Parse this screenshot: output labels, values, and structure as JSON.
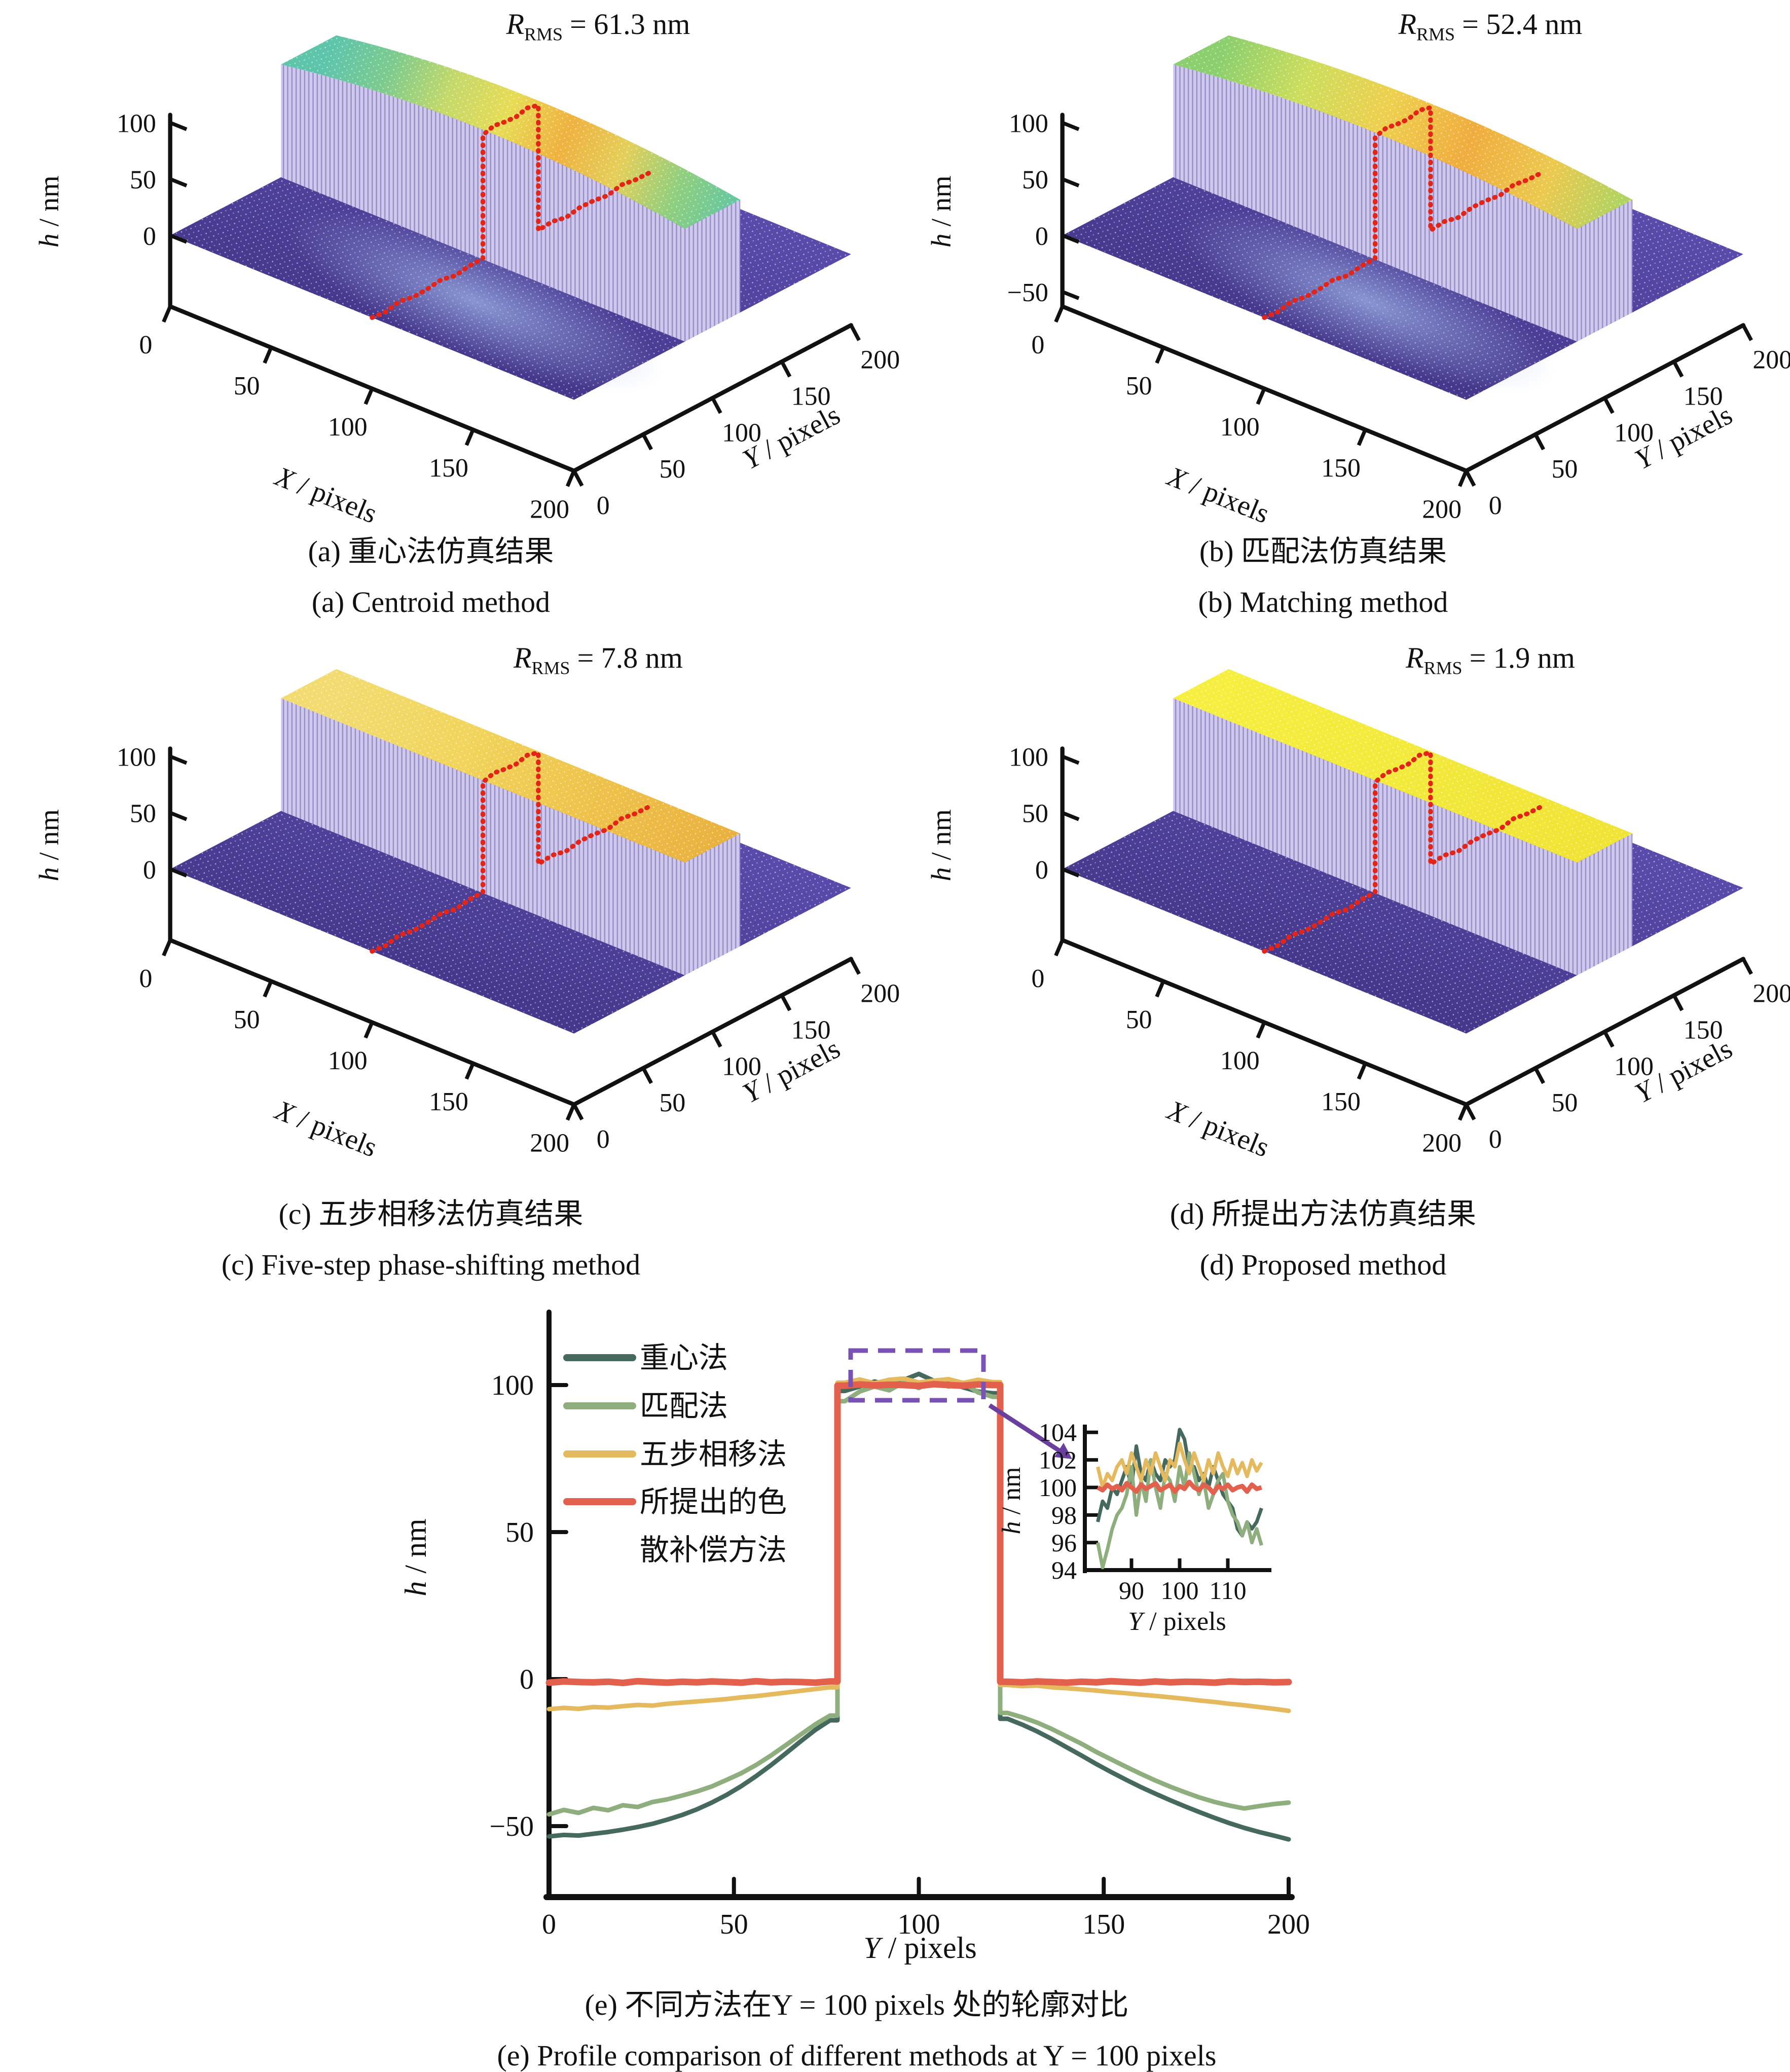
{
  "colors": {
    "background": "#ffffff",
    "axis": "#111111",
    "base_top": "#5b4dae",
    "base_front": "#45388c",
    "wall": "#cfc9ec",
    "wall_stripe": "#978cc9",
    "profile_red_3d": "#e42417",
    "inset_box_purple": "#7a52b5",
    "centroid": "#46695e",
    "matching": "#8fae7d",
    "fivestep": "#e5b95e",
    "proposed": "#e2604c"
  },
  "chart_data": [
    {
      "type": "surface",
      "panel": "a",
      "rms_r": "R",
      "rms_sub": "RMS",
      "rms_value": "= 61.3 nm",
      "rms_nm": 61.3,
      "caption_zh": "(a) 重心法仿真结果",
      "caption_en": "(a) Centroid method",
      "xlabel": "X / pixels",
      "ylabel": "Y / pixels",
      "zlabel": "h / nm",
      "x_ticks": [
        0,
        50,
        100,
        150,
        200
      ],
      "y_ticks": [
        0,
        50,
        100,
        150,
        200
      ],
      "z_ticks": [
        100,
        50,
        0
      ],
      "x_range": [
        0,
        200
      ],
      "y_range": [
        0,
        200
      ],
      "step_y_range": [
        80,
        120
      ],
      "step_height_nm": 100,
      "profile_marked_at_x": 100,
      "band_top_colors": [
        "#5ec5ab",
        "#7ecb8e",
        "#c4d96a",
        "#e7dc55",
        "#efb23f",
        "#e4cf5a",
        "#8fcf7f",
        "#63c6a4"
      ],
      "dome": 36,
      "dip": true
    },
    {
      "type": "surface",
      "panel": "b",
      "rms_r": "R",
      "rms_sub": "RMS",
      "rms_value": "= 52.4 nm",
      "rms_nm": 52.4,
      "caption_zh": "(b) 匹配法仿真结果",
      "caption_en": "(b) Matching method",
      "xlabel": "X / pixels",
      "ylabel": "Y / pixels",
      "zlabel": "h / nm",
      "x_ticks": [
        0,
        50,
        100,
        150,
        200
      ],
      "y_ticks": [
        0,
        50,
        100,
        150,
        200
      ],
      "z_ticks": [
        100,
        50,
        0,
        -50
      ],
      "x_range": [
        0,
        200
      ],
      "y_range": [
        0,
        200
      ],
      "step_y_range": [
        80,
        120
      ],
      "step_height_nm": 100,
      "profile_marked_at_x": 100,
      "band_top_colors": [
        "#8ccf6e",
        "#cdde5c",
        "#eed04e",
        "#f0ad3e",
        "#ecc94e",
        "#a9d564"
      ],
      "dome": 30,
      "dip": true
    },
    {
      "type": "surface",
      "panel": "c",
      "rms_r": "R",
      "rms_sub": "RMS",
      "rms_value": "= 7.8 nm",
      "rms_nm": 7.8,
      "caption_zh": "(c) 五步相移法仿真结果",
      "caption_en": "(c) Five-step phase-shifting method",
      "xlabel": "X / pixels",
      "ylabel": "Y / pixels",
      "zlabel": "h / nm",
      "x_ticks": [
        0,
        50,
        100,
        150,
        200
      ],
      "y_ticks": [
        0,
        50,
        100,
        150,
        200
      ],
      "z_ticks": [
        100,
        50,
        0
      ],
      "x_range": [
        0,
        200
      ],
      "y_range": [
        0,
        200
      ],
      "step_y_range": [
        80,
        120
      ],
      "step_height_nm": 100,
      "profile_marked_at_x": 100,
      "band_top_colors": [
        "#f2dc72",
        "#f1d55c",
        "#eec24a",
        "#e9b03e"
      ],
      "dome": 0,
      "dip": false
    },
    {
      "type": "surface",
      "panel": "d",
      "rms_r": "R",
      "rms_sub": "RMS",
      "rms_value": "= 1.9 nm",
      "rms_nm": 1.9,
      "caption_zh": "(d) 所提出方法仿真结果",
      "caption_en": "(d) Proposed method",
      "xlabel": "X / pixels",
      "ylabel": "Y / pixels",
      "zlabel": "h / nm",
      "x_ticks": [
        0,
        50,
        100,
        150,
        200
      ],
      "y_ticks": [
        0,
        50,
        100,
        150,
        200
      ],
      "z_ticks": [
        100,
        50,
        0
      ],
      "x_range": [
        0,
        200
      ],
      "y_range": [
        0,
        200
      ],
      "step_y_range": [
        80,
        120
      ],
      "step_height_nm": 100,
      "profile_marked_at_x": 100,
      "band_top_colors": [
        "#f6ef3f",
        "#f0e335"
      ],
      "dome": 0,
      "dip": false
    },
    {
      "type": "line",
      "panel": "e",
      "caption_zh": "(e) 不同方法在Y = 100 pixels 处的轮廓对比",
      "caption_en": "(e) Profile comparison of different methods at Y = 100 pixels",
      "xlabel": "Y / pixels",
      "ylabel": "h / nm",
      "x_ticks": [
        0,
        50,
        100,
        150,
        200
      ],
      "y_ticks": [
        100,
        50,
        0,
        -50
      ],
      "xlim": [
        0,
        200
      ],
      "ylim": [
        -74,
        124
      ],
      "x_start": 0,
      "x_step": 4,
      "series": [
        {
          "id": "centroid",
          "name": "重心法",
          "legend_lines": [
            "重心法"
          ],
          "values": [
            -53.5,
            -53.0,
            -53.2,
            -52.6,
            -52.0,
            -51.2,
            -50.3,
            -49.2,
            -47.8,
            -46.2,
            -44.3,
            -42.0,
            -39.4,
            -36.4,
            -33.0,
            -29.3,
            -25.3,
            -21.2,
            -17.3,
            -14.0,
            98.0,
            99.5,
            101.2,
            100.0,
            101.8,
            103.8,
            101.5,
            100.8,
            99.2,
            97.8,
            97.2,
            -13.5,
            -15.5,
            -17.8,
            -20.4,
            -23.2,
            -26.0,
            -28.9,
            -31.6,
            -34.2,
            -36.7,
            -39.0,
            -41.2,
            -43.3,
            -45.3,
            -47.2,
            -49.0,
            -50.6,
            -52.0,
            -53.2,
            -54.5
          ]
        },
        {
          "id": "matching",
          "name": "匹配法",
          "legend_lines": [
            "匹配法"
          ],
          "values": [
            -46.0,
            -44.5,
            -45.5,
            -43.8,
            -44.6,
            -42.9,
            -43.5,
            -41.8,
            -40.9,
            -39.6,
            -38.2,
            -36.5,
            -34.3,
            -32.0,
            -29.2,
            -26.0,
            -22.5,
            -18.9,
            -15.4,
            -12.4,
            94.5,
            97.8,
            99.5,
            98.2,
            101.0,
            99.0,
            101.5,
            99.5,
            100.8,
            97.5,
            96.0,
            -11.5,
            -13.0,
            -14.8,
            -17.0,
            -19.5,
            -22.0,
            -24.8,
            -27.3,
            -29.8,
            -32.2,
            -34.5,
            -36.6,
            -38.5,
            -40.3,
            -41.8,
            -43.0,
            -44.0,
            -43.2,
            -42.5,
            -42.0
          ]
        },
        {
          "id": "fivestep",
          "name": "五步相移法",
          "legend_lines": [
            "五步相移法"
          ],
          "values": [
            -10.2,
            -9.8,
            -10.1,
            -9.5,
            -9.7,
            -9.2,
            -8.8,
            -9.0,
            -8.4,
            -8.0,
            -7.6,
            -7.2,
            -6.8,
            -6.2,
            -5.8,
            -5.2,
            -4.6,
            -4.0,
            -3.4,
            -2.8,
            100.8,
            101.9,
            100.6,
            101.8,
            102.2,
            100.9,
            101.5,
            102.0,
            100.7,
            101.8,
            101.0,
            -2.0,
            -2.4,
            -2.2,
            -2.8,
            -3.1,
            -3.5,
            -3.9,
            -4.4,
            -4.8,
            -5.3,
            -5.7,
            -6.2,
            -6.7,
            -7.3,
            -7.8,
            -8.4,
            -8.9,
            -9.5,
            -10.1,
            -10.8
          ]
        },
        {
          "id": "proposed",
          "name": "所提出的色散补偿方法",
          "legend_lines": [
            "所提出的色",
            "散补偿方法"
          ],
          "values": [
            -1.2,
            -0.8,
            -1.0,
            -1.1,
            -0.9,
            -1.3,
            -0.7,
            -1.0,
            -1.2,
            -0.9,
            -1.1,
            -0.8,
            -1.0,
            -1.2,
            -0.7,
            -1.1,
            -0.9,
            -1.0,
            -1.2,
            -0.8,
            99.8,
            100.2,
            99.9,
            100.1,
            100.0,
            99.7,
            100.3,
            100.0,
            99.8,
            100.2,
            100.0,
            -0.9,
            -1.1,
            -0.8,
            -1.0,
            -1.2,
            -0.9,
            -1.1,
            -0.7,
            -1.0,
            -1.2,
            -0.8,
            -1.1,
            -0.9,
            -1.0,
            -1.2,
            -0.8,
            -1.0,
            -0.9,
            -1.1,
            -1.0
          ]
        }
      ],
      "inset": {
        "x_start": 83,
        "x_step": 1,
        "x_ticks": [
          90,
          100,
          110
        ],
        "y_ticks": [
          104,
          102,
          100,
          98,
          96,
          94
        ],
        "xlabel": "Y / pixels",
        "ylabel": "h / nm",
        "xlim": [
          80,
          118
        ],
        "ylim": [
          94,
          104.5
        ],
        "series": [
          {
            "id": "centroid",
            "values": [
              97.5,
              99.0,
              98.5,
              100.0,
              99.5,
              100.5,
              101.5,
              100.0,
              103.0,
              101.0,
              100.5,
              102.0,
              101.0,
              100.5,
              102.0,
              101.5,
              102.0,
              104.2,
              103.5,
              101.5,
              101.5,
              100.5,
              101.0,
              100.0,
              101.5,
              100.5,
              99.5,
              99.0,
              98.5,
              97.0,
              96.5,
              97.5,
              97.0,
              97.5,
              98.5
            ]
          },
          {
            "id": "matching",
            "values": [
              96.0,
              94.2,
              95.5,
              97.0,
              98.0,
              98.5,
              99.5,
              101.5,
              98.0,
              100.5,
              99.0,
              102.0,
              100.0,
              98.5,
              101.0,
              100.5,
              99.0,
              101.5,
              100.0,
              102.5,
              101.0,
              99.5,
              100.5,
              98.5,
              99.5,
              100.5,
              101.0,
              99.0,
              98.0,
              97.5,
              96.5,
              97.5,
              96.0,
              97.0,
              95.8
            ]
          },
          {
            "id": "fivestep",
            "values": [
              101.5,
              100.0,
              101.0,
              100.5,
              101.5,
              102.0,
              101.0,
              102.5,
              101.5,
              100.5,
              102.0,
              101.0,
              102.5,
              101.5,
              100.5,
              102.0,
              101.5,
              103.2,
              102.0,
              101.0,
              102.5,
              101.5,
              100.5,
              102.0,
              101.0,
              102.5,
              101.5,
              100.8,
              102.0,
              101.0,
              101.8,
              100.8,
              102.0,
              101.2,
              101.8
            ]
          },
          {
            "id": "proposed",
            "values": [
              100.0,
              99.8,
              100.2,
              99.9,
              100.1,
              99.8,
              100.3,
              100.0,
              99.7,
              100.2,
              99.9,
              100.1,
              100.3,
              99.8,
              100.0,
              100.2,
              99.7,
              100.1,
              99.9,
              100.4,
              100.0,
              99.8,
              100.2,
              100.0,
              99.6,
              100.1,
              99.9,
              100.2,
              99.8,
              100.0,
              100.1,
              99.7,
              100.2,
              99.9,
              100.0
            ]
          }
        ]
      }
    }
  ]
}
